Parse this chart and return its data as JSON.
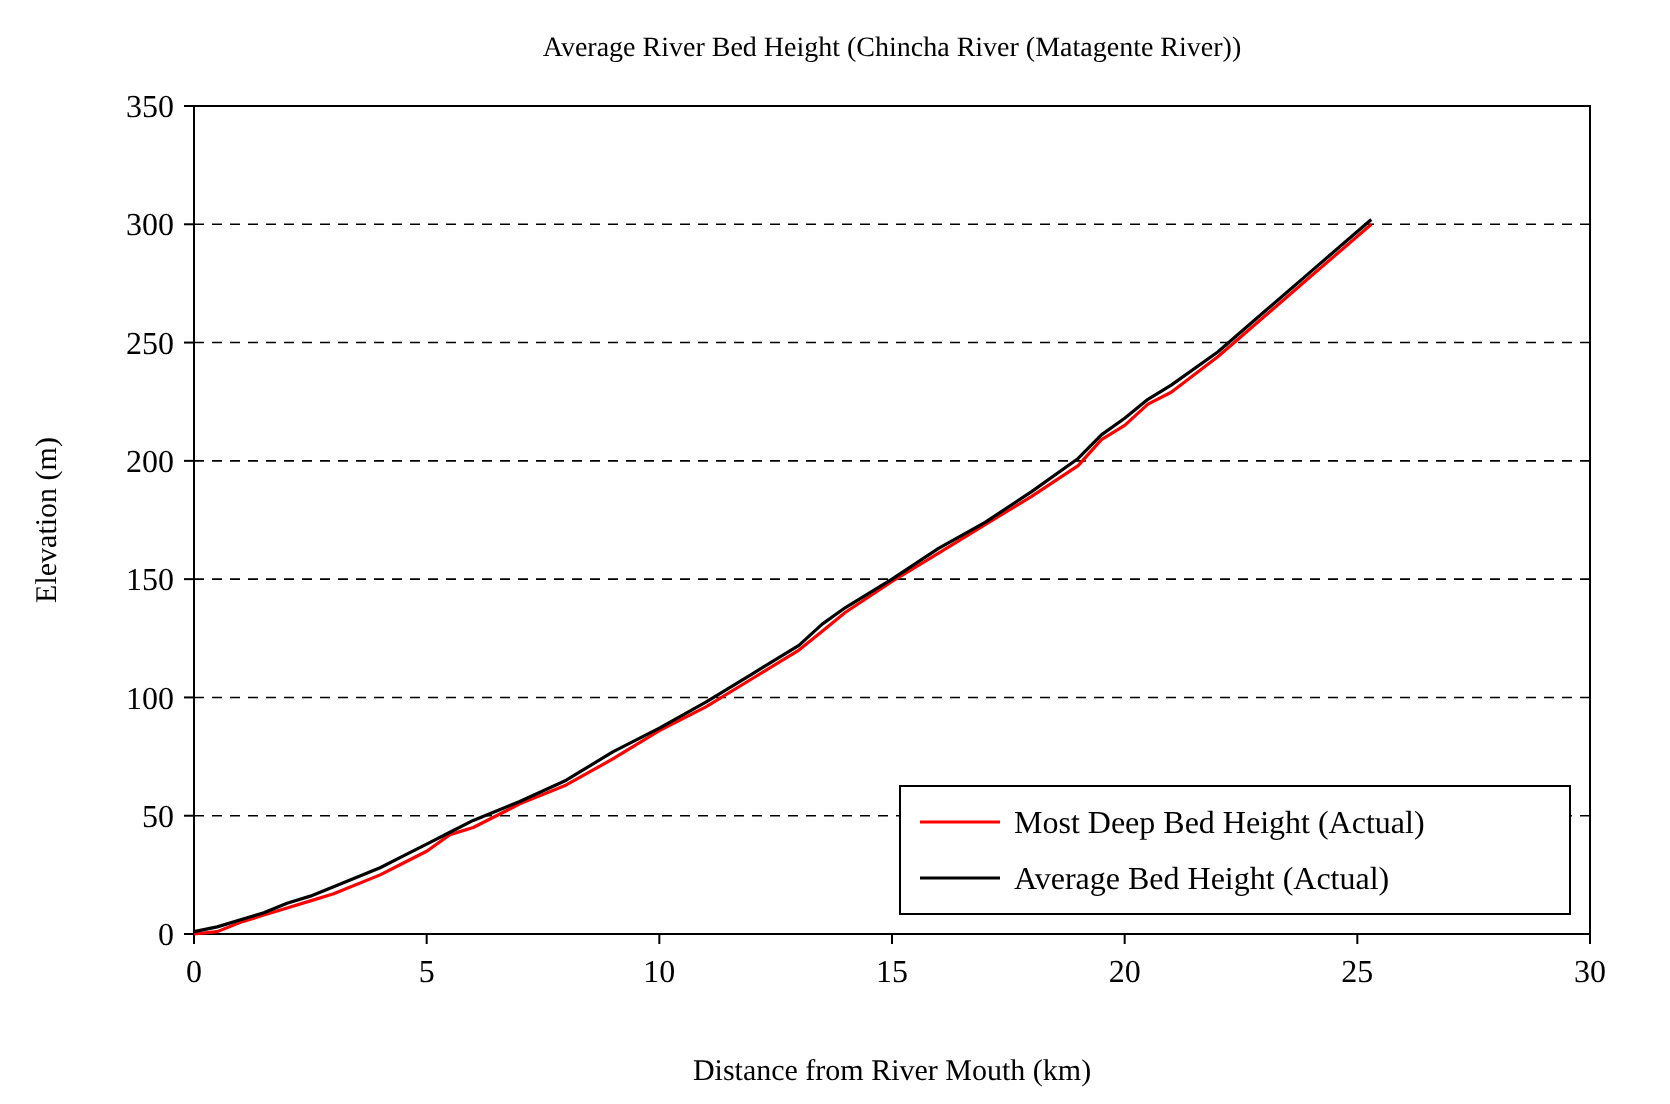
{
  "chart_data": {
    "type": "line",
    "title": "Average River Bed Height (Chincha River (Matagente River))",
    "xlabel": "Distance from River Mouth (km)",
    "ylabel": "Elevation  (m)",
    "x": [
      0,
      0.5,
      1,
      1.5,
      2,
      2.5,
      3,
      4,
      4.5,
      5,
      5.5,
      6,
      7,
      8,
      9,
      10,
      11,
      12,
      13,
      13.5,
      14,
      15,
      16,
      17,
      18,
      19,
      19.5,
      20,
      20.5,
      21,
      22,
      23,
      24,
      25.3
    ],
    "series": [
      {
        "name": "Most Deep Bed Height (Actual)",
        "color": "#ff0000",
        "values": [
          0,
          1,
          5,
          8,
          11,
          14,
          17,
          25,
          30,
          35,
          42,
          45,
          55,
          63,
          74,
          86,
          96,
          108,
          120,
          128,
          136,
          149,
          161,
          173,
          185,
          198,
          209,
          215,
          224,
          229,
          244,
          261,
          278,
          300
        ]
      },
      {
        "name": "Average Bed Height (Actual)",
        "color": "#000000",
        "values": [
          1,
          3,
          6,
          9,
          13,
          16,
          20,
          28,
          33,
          38,
          43,
          48,
          56,
          65,
          77,
          87,
          98,
          110,
          122,
          131,
          138,
          150,
          163,
          174,
          187,
          201,
          211,
          218,
          226,
          232,
          246,
          263,
          280,
          302
        ]
      }
    ],
    "xlim": [
      0,
      30
    ],
    "xticks": [
      0,
      5,
      10,
      15,
      20,
      25,
      30
    ],
    "ylim": [
      0,
      350
    ],
    "yticks": [
      0,
      50,
      100,
      150,
      200,
      250,
      300,
      350
    ],
    "grid": "y",
    "legend": "bottom right",
    "marker": "none",
    "line_style": "solid"
  }
}
